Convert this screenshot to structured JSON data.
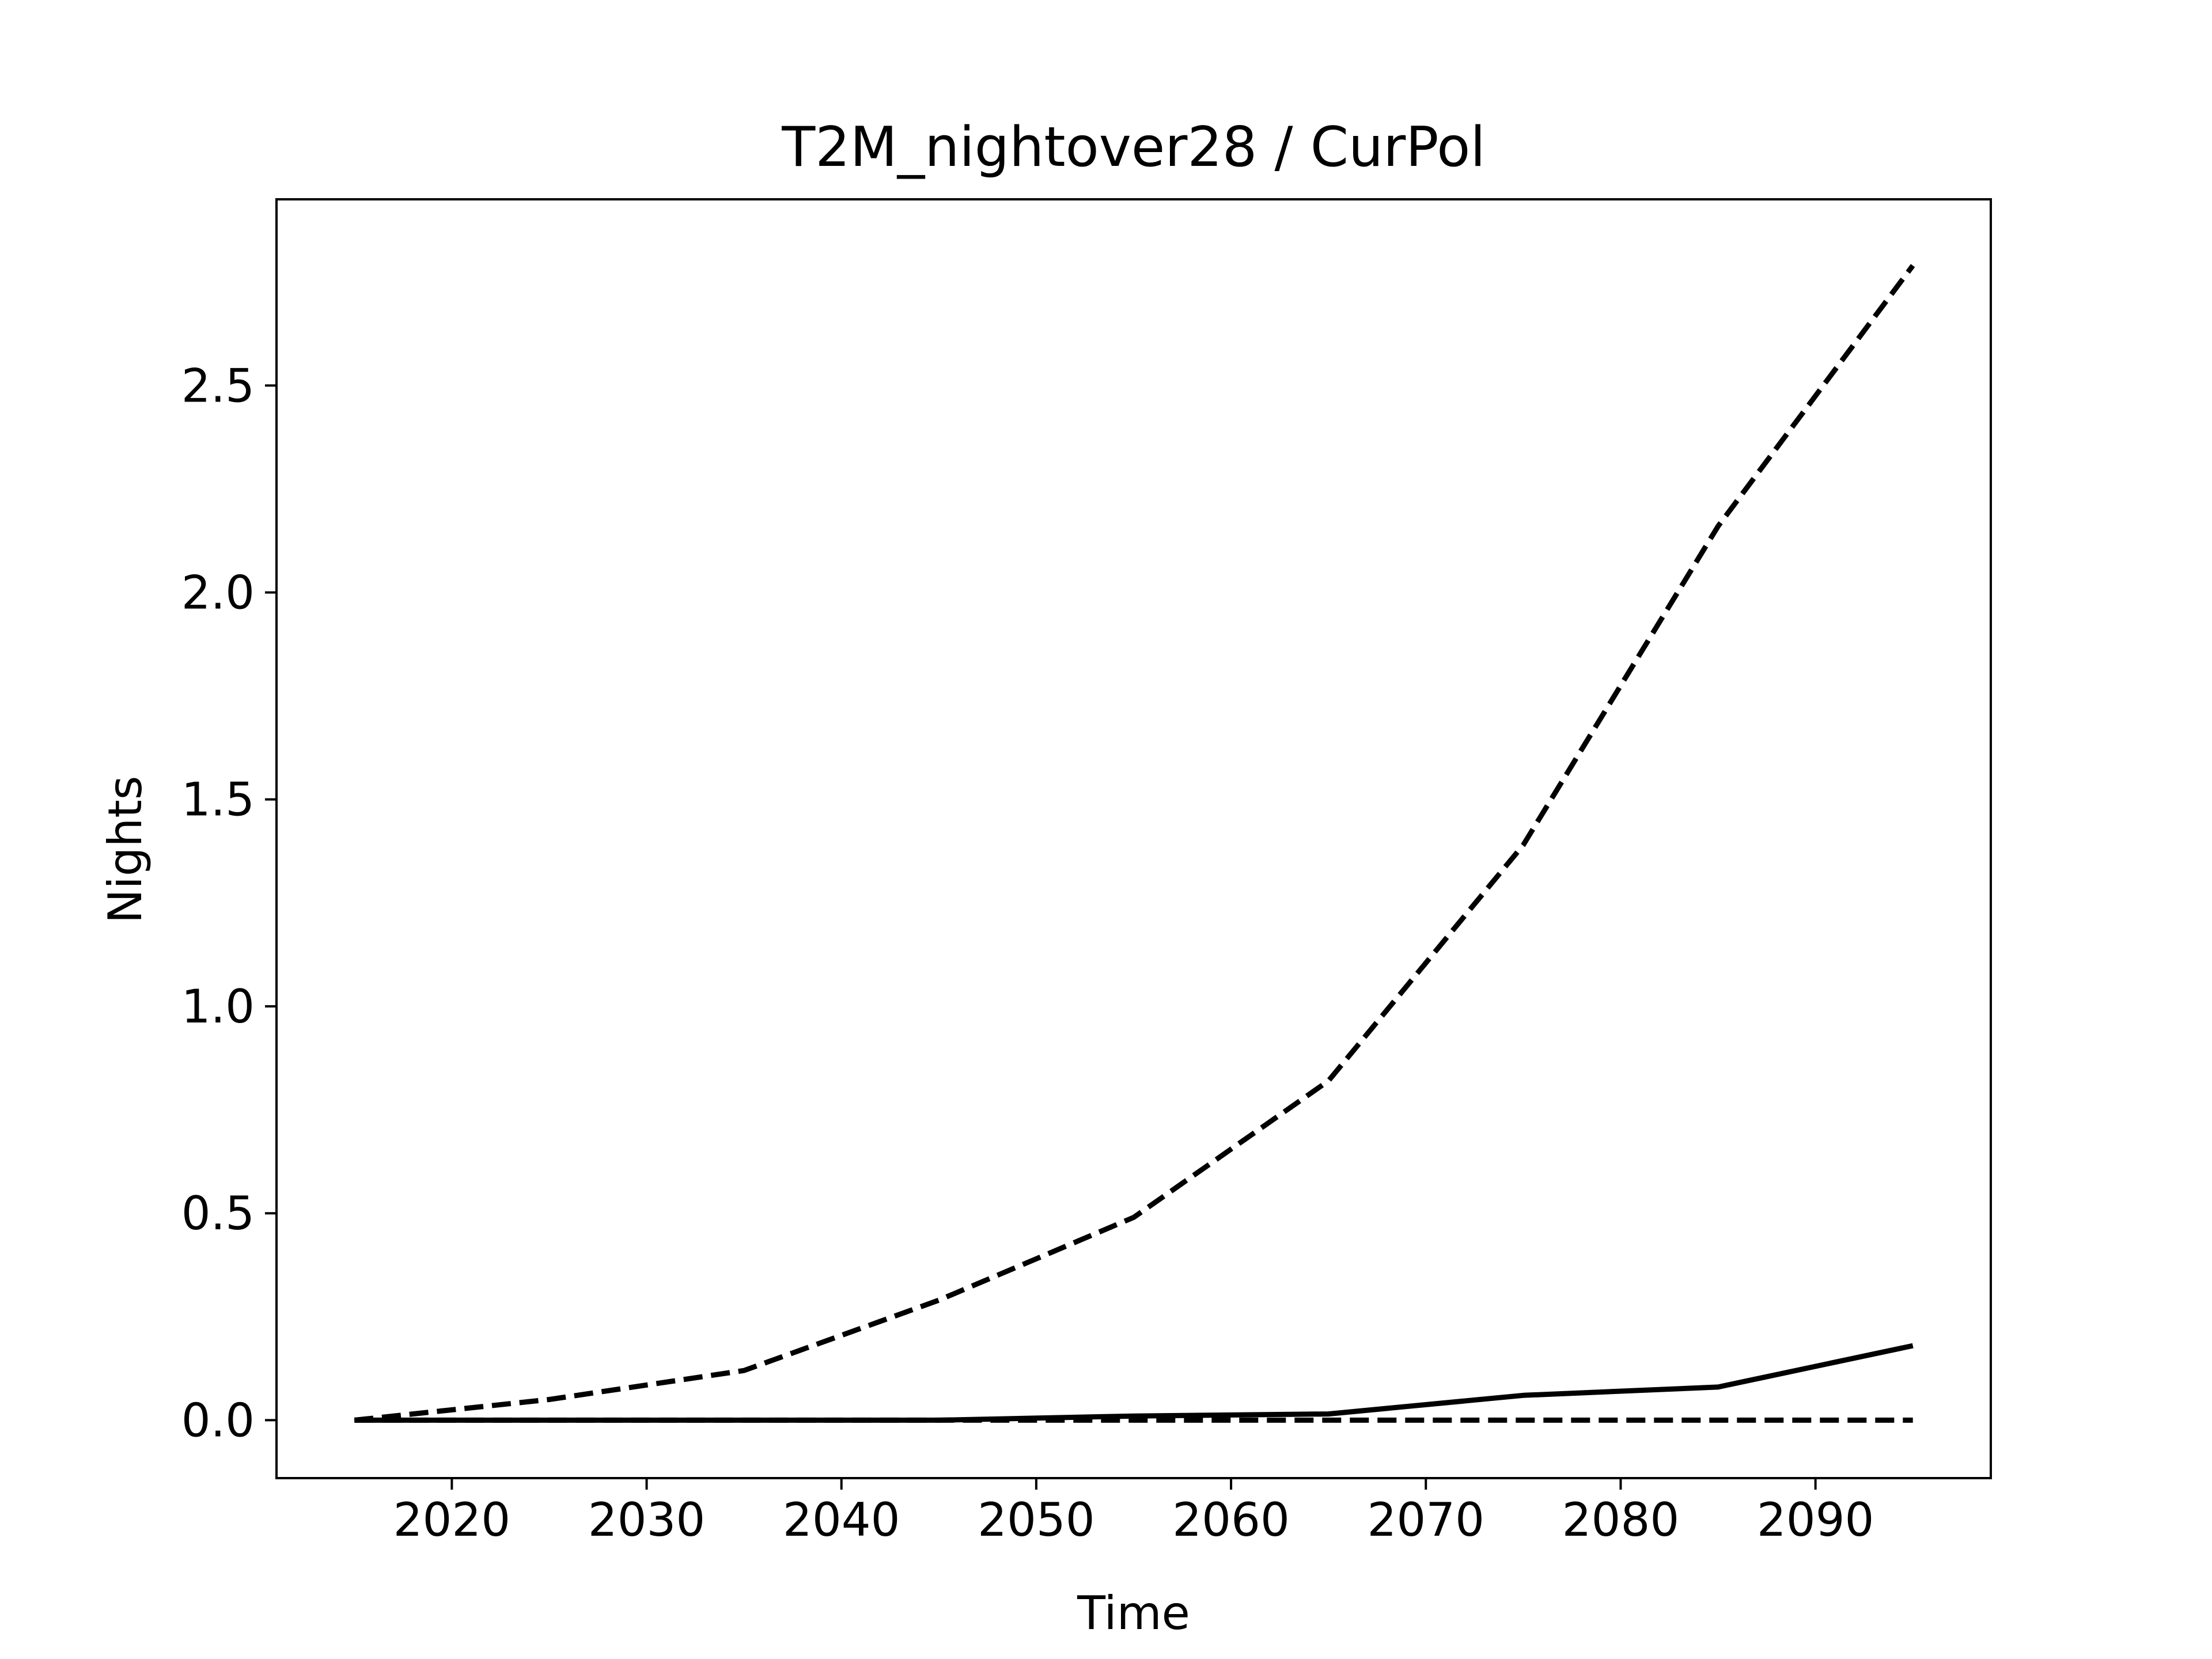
{
  "chart_data": {
    "type": "line",
    "title": "T2M_nightover28 / CurPol",
    "xlabel": "Time",
    "ylabel": "Nights",
    "xlim": [
      2011,
      2099
    ],
    "ylim": [
      -0.14,
      2.95
    ],
    "xticks": [
      2020,
      2030,
      2040,
      2050,
      2060,
      2070,
      2080,
      2090
    ],
    "xtick_labels": [
      "2020",
      "2030",
      "2040",
      "2050",
      "2060",
      "2070",
      "2080",
      "2090"
    ],
    "yticks": [
      0.0,
      0.5,
      1.0,
      1.5,
      2.0,
      2.5
    ],
    "ytick_labels": [
      "0.0",
      "0.5",
      "1.0",
      "1.5",
      "2.0",
      "2.5"
    ],
    "grid": false,
    "legend": "none",
    "series": [
      {
        "style": "solid",
        "color": "#000000",
        "x": [
          2015,
          2025,
          2035,
          2045,
          2055,
          2065,
          2075,
          2085,
          2095
        ],
        "y": [
          0.0,
          0.0,
          0.0,
          0.0,
          0.01,
          0.015,
          0.06,
          0.08,
          0.18
        ]
      },
      {
        "style": "dashed",
        "color": "#000000",
        "x": [
          2015,
          2025,
          2035,
          2045,
          2055,
          2065,
          2075,
          2085,
          2095
        ],
        "y": [
          0.0,
          0.05,
          0.12,
          0.29,
          0.49,
          0.82,
          1.39,
          2.16,
          2.79
        ]
      },
      {
        "style": "dashed",
        "color": "#000000",
        "x": [
          2015,
          2025,
          2035,
          2045,
          2055,
          2065,
          2075,
          2085,
          2095
        ],
        "y": [
          0.0,
          0.0,
          0.0,
          0.0,
          0.0,
          0.0,
          0.0,
          0.0,
          0.0
        ]
      }
    ]
  }
}
